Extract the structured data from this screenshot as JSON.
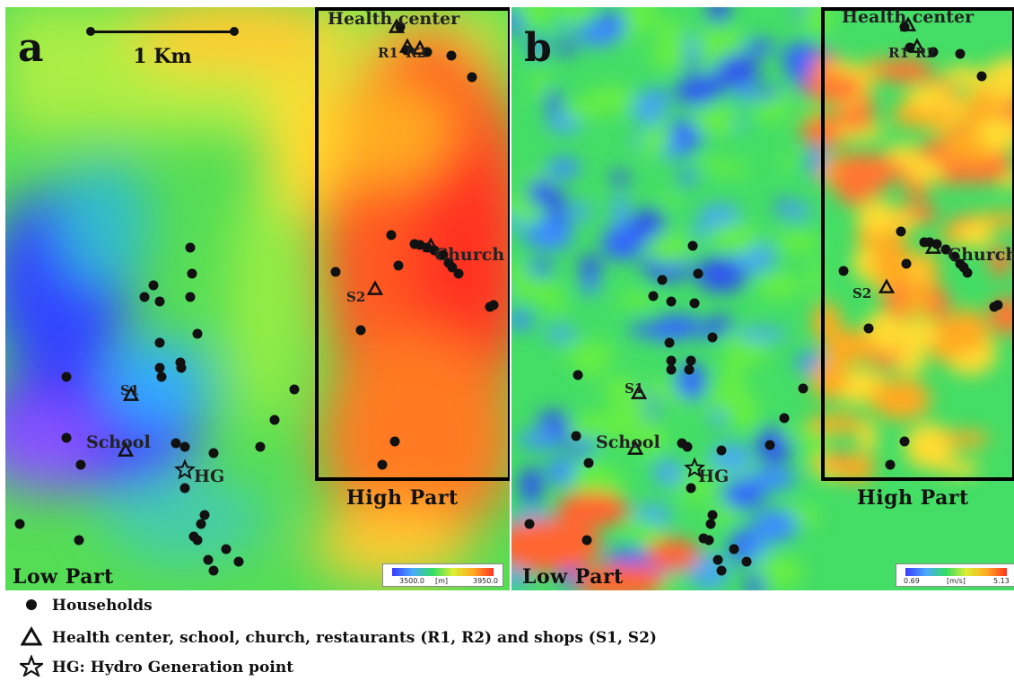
{
  "panels": [
    {
      "id": "a",
      "label": "a",
      "region_high": "High Part",
      "region_low": "Low Part",
      "scale_bar": "1 Km",
      "colorbar": {
        "min": "3500.0",
        "unit": "[m]",
        "max": "3950.0"
      },
      "features": {
        "health_center": "Health center",
        "r1": "R1",
        "r2": "R2",
        "church": "Church",
        "s1": "S1",
        "s2": "S2",
        "school": "School",
        "hg": "HG"
      }
    },
    {
      "id": "b",
      "label": "b",
      "region_high": "High Part",
      "region_low": "Low Part",
      "colorbar": {
        "min": "0.69",
        "unit": "[m/s]",
        "max": "5.13"
      },
      "features": {
        "health_center": "Health center",
        "r1": "R1",
        "r2": "R2",
        "church": "Church",
        "s1": "S1",
        "s2": "S2",
        "school": "School",
        "hg": "HG"
      }
    }
  ],
  "legend": {
    "households": "Households",
    "facilities": "Health center, school, church, restaurants  (R1, R2) and shops (S1, S2)",
    "hg": "HG: Hydro Generation point"
  },
  "colors": {
    "low": "#3a3aff",
    "mid": "#33dd66",
    "high": "#ff3322"
  }
}
